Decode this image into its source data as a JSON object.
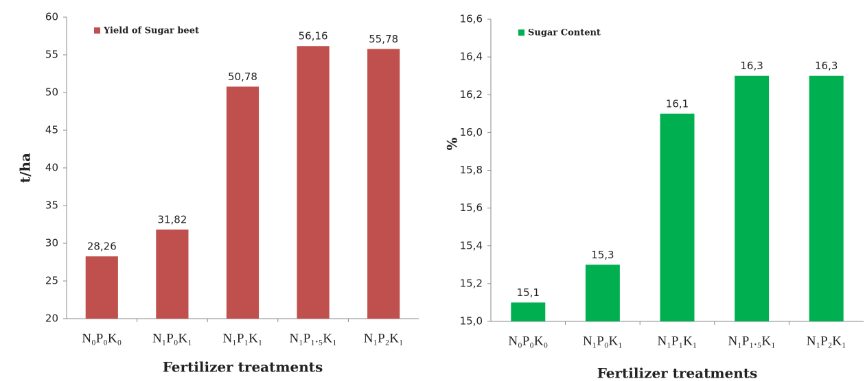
{
  "chart_data": [
    {
      "type": "bar",
      "categories": [
        "N₀P₀K₀",
        "N₁P₀K₁",
        "N₁P₁K₁",
        "N₁P₁.₅K₁",
        "N₁P₂K₁"
      ],
      "series": [
        {
          "name": "Yield of Sugar beet",
          "color": "#c0504d",
          "values": [
            28.26,
            31.82,
            50.78,
            56.16,
            55.78
          ],
          "value_labels": [
            "28,26",
            "31,82",
            "50,78",
            "56,16",
            "55,78"
          ]
        }
      ],
      "ylim": [
        20,
        60
      ],
      "yticks": [
        20,
        25,
        30,
        35,
        40,
        45,
        50,
        55,
        60
      ],
      "y_label": "t/ha",
      "x_label": "Fertilizer treatments"
    },
    {
      "type": "bar",
      "categories": [
        "N₀P₀K₀",
        "N₁P₀K₁",
        "N₁P₁K₁",
        "N₁P₁.₅K₁",
        "N₁P₂K₁"
      ],
      "series": [
        {
          "name": "Sugar Content",
          "color": "#00b050",
          "values": [
            15.1,
            15.3,
            16.1,
            16.3,
            16.3
          ],
          "value_labels": [
            "15,1",
            "15,3",
            "16,1",
            "16,3",
            "16,3"
          ]
        }
      ],
      "ylim": [
        15.0,
        16.6
      ],
      "yticks": [
        {
          "value": 15.0,
          "label": "15,0"
        },
        {
          "value": 15.2,
          "label": "15,2"
        },
        {
          "value": 15.4,
          "label": "15,4"
        },
        {
          "value": 15.6,
          "label": "15,6"
        },
        {
          "value": 15.8,
          "label": "15,8"
        },
        {
          "value": 16.0,
          "label": "16,0"
        },
        {
          "value": 16.2,
          "label": "16,2"
        },
        {
          "value": 16.4,
          "label": "16,4"
        },
        {
          "value": 16.6,
          "label": "16,6"
        }
      ],
      "y_label": "%",
      "x_label": "Fertilizer treatments"
    }
  ]
}
